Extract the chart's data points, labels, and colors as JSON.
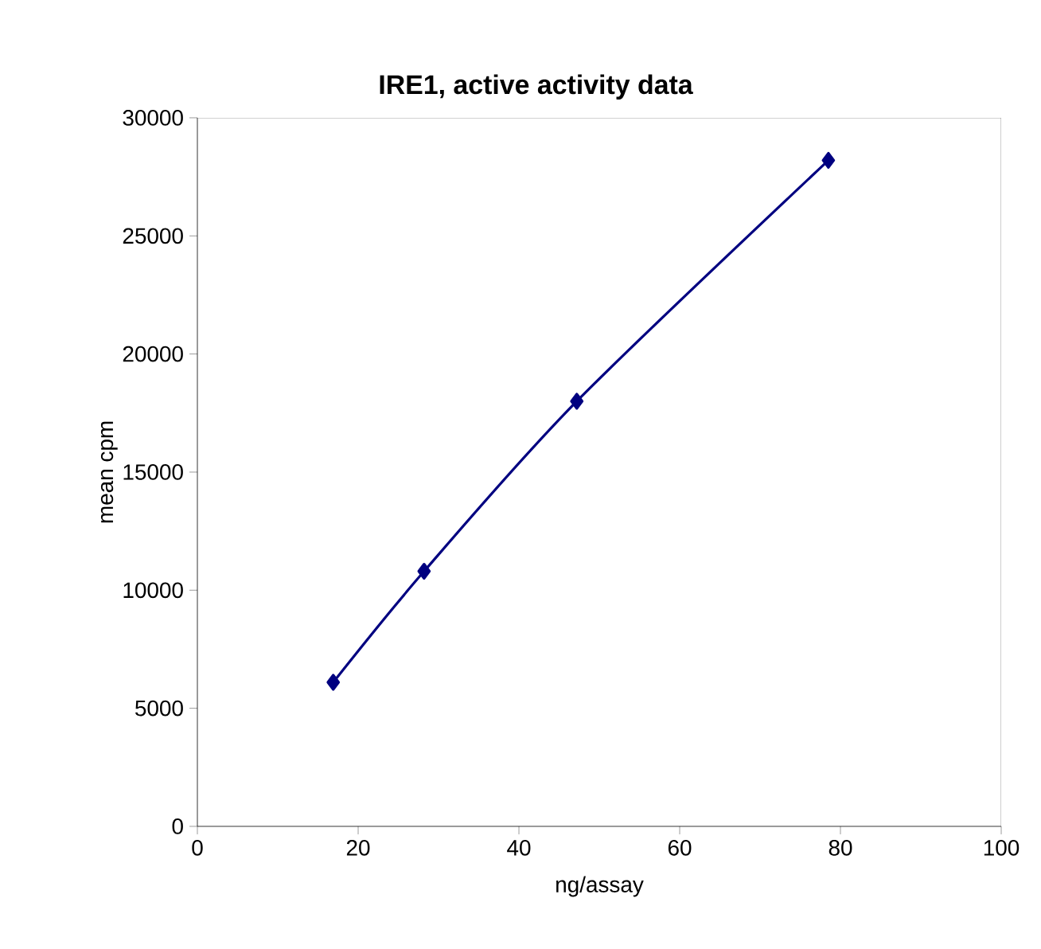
{
  "chart_data": {
    "type": "line",
    "title": "IRE1, active activity data",
    "xlabel": "ng/assay",
    "ylabel": "mean cpm",
    "x": [
      16.9,
      28.2,
      47.2,
      78.5
    ],
    "series": [
      {
        "color": "#000080",
        "values": [
          6100,
          10800,
          18000,
          28200
        ]
      }
    ],
    "xlim": [
      0,
      100
    ],
    "xticks": [
      0,
      20,
      40,
      60,
      80,
      100
    ],
    "ylim": [
      0,
      30000
    ],
    "yticks": [
      0,
      5000,
      10000,
      15000,
      20000,
      25000,
      30000
    ],
    "marker": "diamond",
    "line_style": "solid",
    "grid": false
  }
}
